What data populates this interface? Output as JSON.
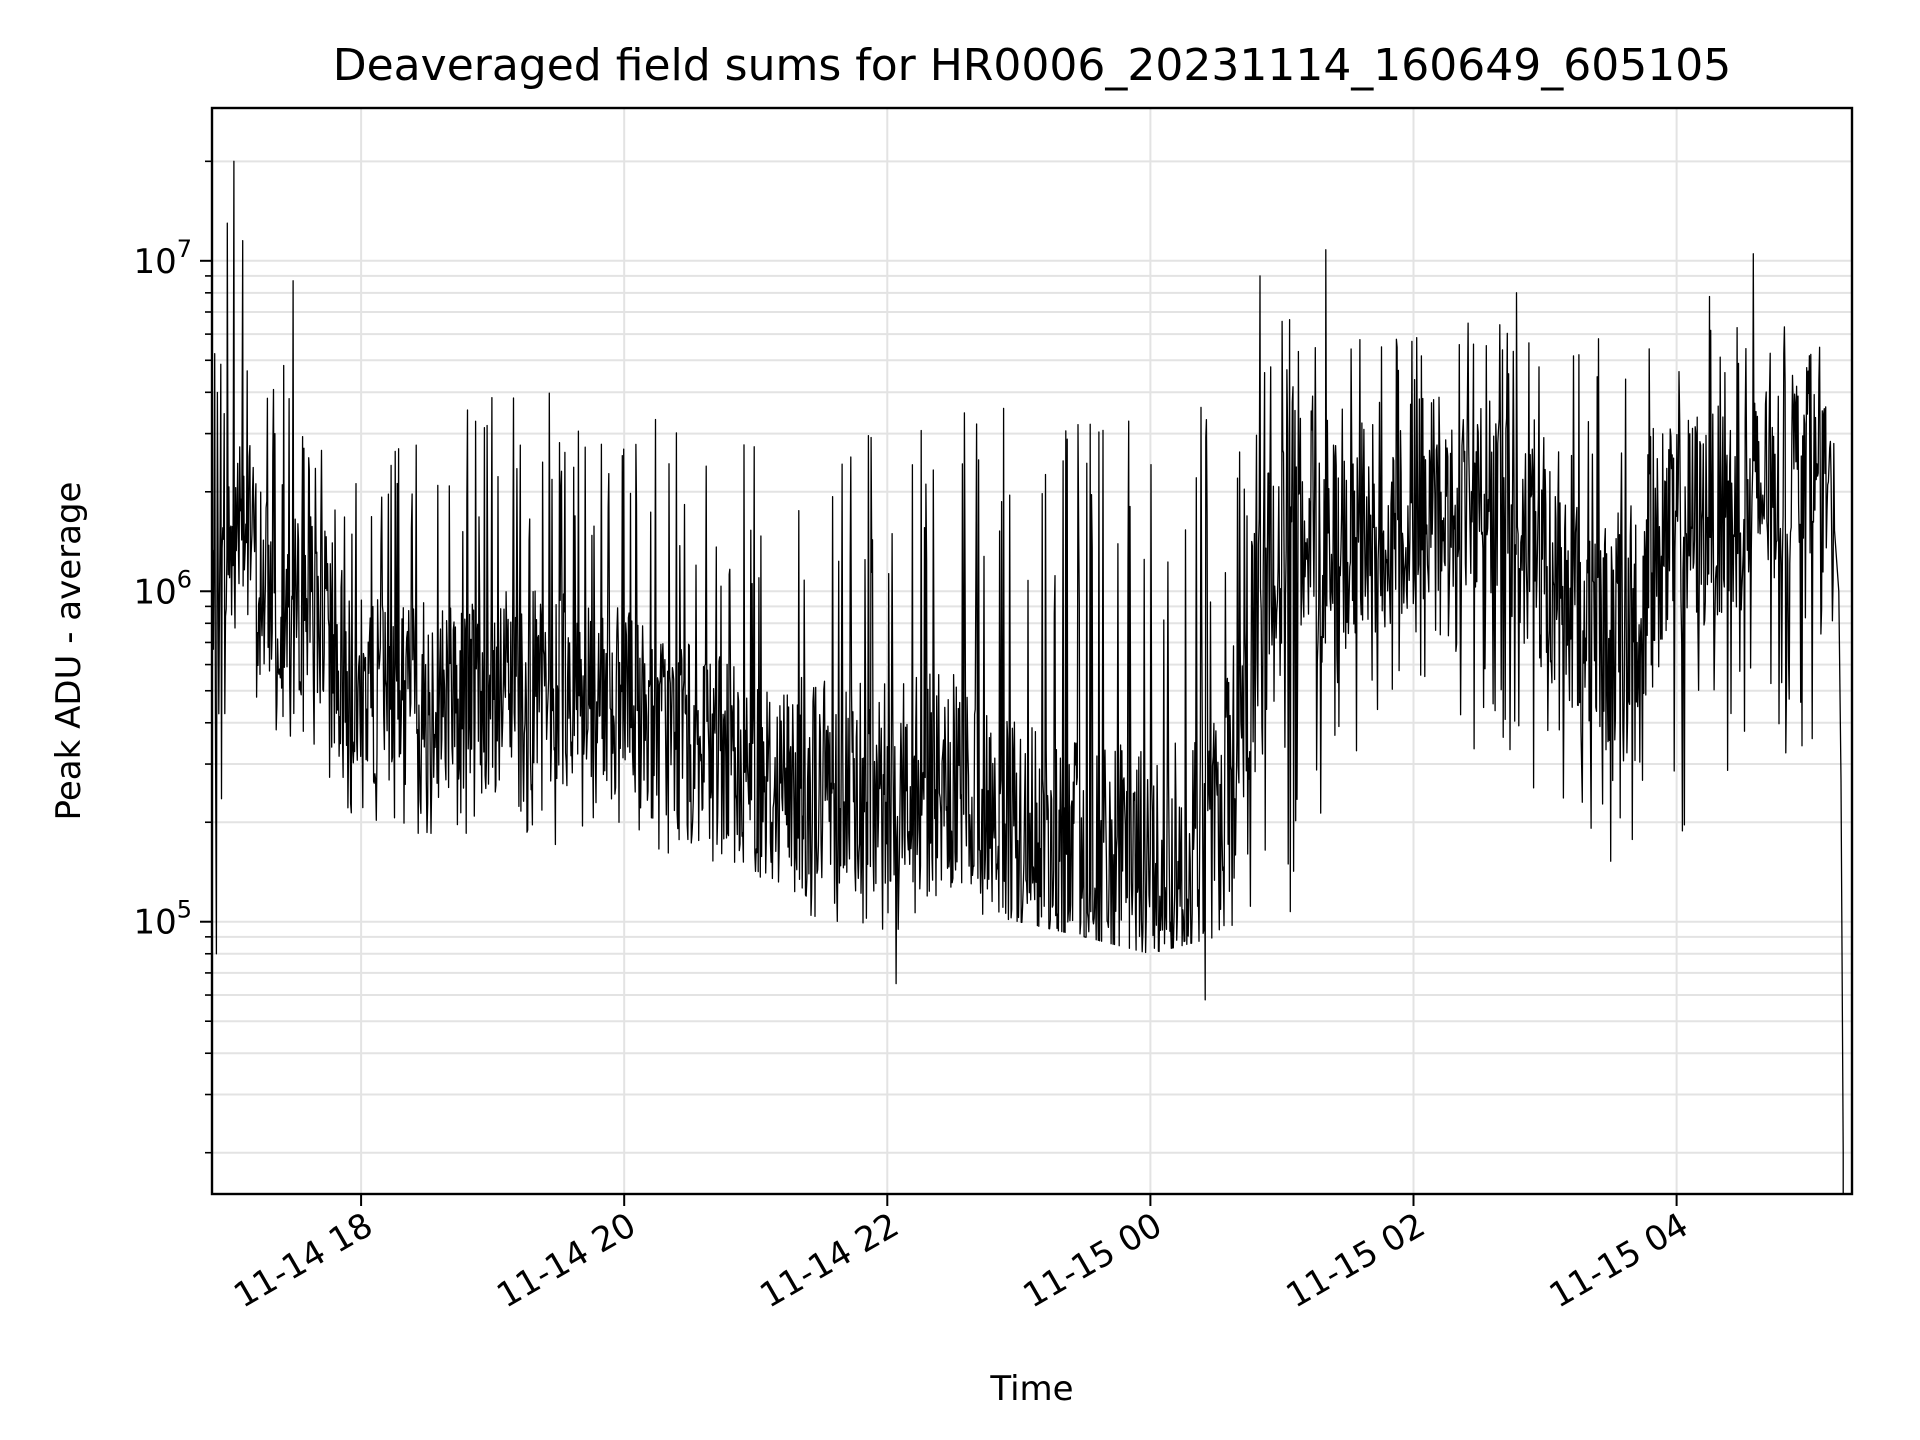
{
  "chart_data": {
    "type": "line",
    "title": "Deaveraged field sums for HR0006_20231114_160649_605105",
    "xlabel": "Time",
    "ylabel": "Peak ADU - average",
    "yscale": "log",
    "xlim": [
      "2023-11-14 16:52",
      "2023-11-15 05:20"
    ],
    "ylim": [
      15000,
      29000000
    ],
    "grid": true,
    "x_tick_labels": [
      "11-14 18",
      "11-14 20",
      "11-14 22",
      "11-15 00",
      "11-15 02",
      "11-15 04"
    ],
    "x_ticks": [
      "2023-11-14 18:00",
      "2023-11-14 20:00",
      "2023-11-14 22:00",
      "2023-11-15 00:00",
      "2023-11-15 02:00",
      "2023-11-15 04:00"
    ],
    "y_tick_labels": [
      {
        "base": "10",
        "exp": "5",
        "value": 100000
      },
      {
        "base": "10",
        "exp": "6",
        "value": 1000000
      },
      {
        "base": "10",
        "exp": "7",
        "value": 10000000
      }
    ],
    "series": [
      {
        "color": "#000000",
        "envelope": {
          "x": [
            "2023-11-14 16:52",
            "2023-11-14 17:04",
            "2023-11-14 17:20",
            "2023-11-14 17:40",
            "2023-11-14 18:00",
            "2023-11-14 18:30",
            "2023-11-14 19:00",
            "2023-11-14 19:30",
            "2023-11-14 20:00",
            "2023-11-14 20:30",
            "2023-11-14 21:00",
            "2023-11-14 21:30",
            "2023-11-14 22:00",
            "2023-11-14 22:30",
            "2023-11-14 23:00",
            "2023-11-14 23:30",
            "2023-11-15 00:00",
            "2023-11-15 00:30",
            "2023-11-15 01:00",
            "2023-11-15 01:30",
            "2023-11-15 02:00",
            "2023-11-15 02:30",
            "2023-11-15 03:00",
            "2023-11-15 03:30",
            "2023-11-15 04:00",
            "2023-11-15 04:30",
            "2023-11-15 05:00",
            "2023-11-15 05:12"
          ],
          "low": [
            150000,
            500000,
            350000,
            250000,
            190000,
            180000,
            180000,
            170000,
            180000,
            150000,
            130000,
            100000,
            90000,
            110000,
            100000,
            90000,
            80000,
            90000,
            90000,
            300000,
            600000,
            300000,
            200000,
            150000,
            150000,
            250000,
            350000,
            400000
          ],
          "typical": [
            600000,
            2000000,
            900000,
            900000,
            500000,
            500000,
            500000,
            500000,
            450000,
            350000,
            280000,
            250000,
            270000,
            250000,
            180000,
            150000,
            150000,
            180000,
            1500000,
            1300000,
            1500000,
            2000000,
            1200000,
            700000,
            1500000,
            1800000,
            2500000,
            1800000
          ],
          "high": [
            5000000,
            8000000,
            5000000,
            4500000,
            3500000,
            3500000,
            4000000,
            4000000,
            3500000,
            3500000,
            3000000,
            3500000,
            3500000,
            4000000,
            3500000,
            4000000,
            3000000,
            4000000,
            7000000,
            7000000,
            6000000,
            7000000,
            6000000,
            6000000,
            5500000,
            7000000,
            6000000,
            5000000
          ]
        },
        "spikes": [
          {
            "x": "2023-11-14 17:02",
            "y": 20000000
          },
          {
            "x": "2023-11-14 16:59",
            "y": 13000000
          },
          {
            "x": "2023-11-14 17:06",
            "y": 11500000
          },
          {
            "x": "2023-11-14 17:29",
            "y": 8700000
          },
          {
            "x": "2023-11-15 00:50",
            "y": 9000000
          },
          {
            "x": "2023-11-15 01:20",
            "y": 10800000
          },
          {
            "x": "2023-11-15 02:47",
            "y": 8000000
          },
          {
            "x": "2023-11-15 04:35",
            "y": 10500000
          },
          {
            "x": "2023-11-15 04:15",
            "y": 7800000
          },
          {
            "x": "2023-11-14 22:04",
            "y": 65000
          },
          {
            "x": "2023-11-15 00:25",
            "y": 58000
          },
          {
            "x": "2023-11-14 16:54",
            "y": 80000
          }
        ],
        "tail": [
          {
            "x": "2023-11-15 05:14",
            "y": 1000000
          },
          {
            "x": "2023-11-15 05:15",
            "y": 270000
          },
          {
            "x": "2023-11-15 05:16",
            "y": 20000
          },
          {
            "x": "2023-11-15 05:16",
            "y": 14000
          }
        ]
      }
    ]
  }
}
